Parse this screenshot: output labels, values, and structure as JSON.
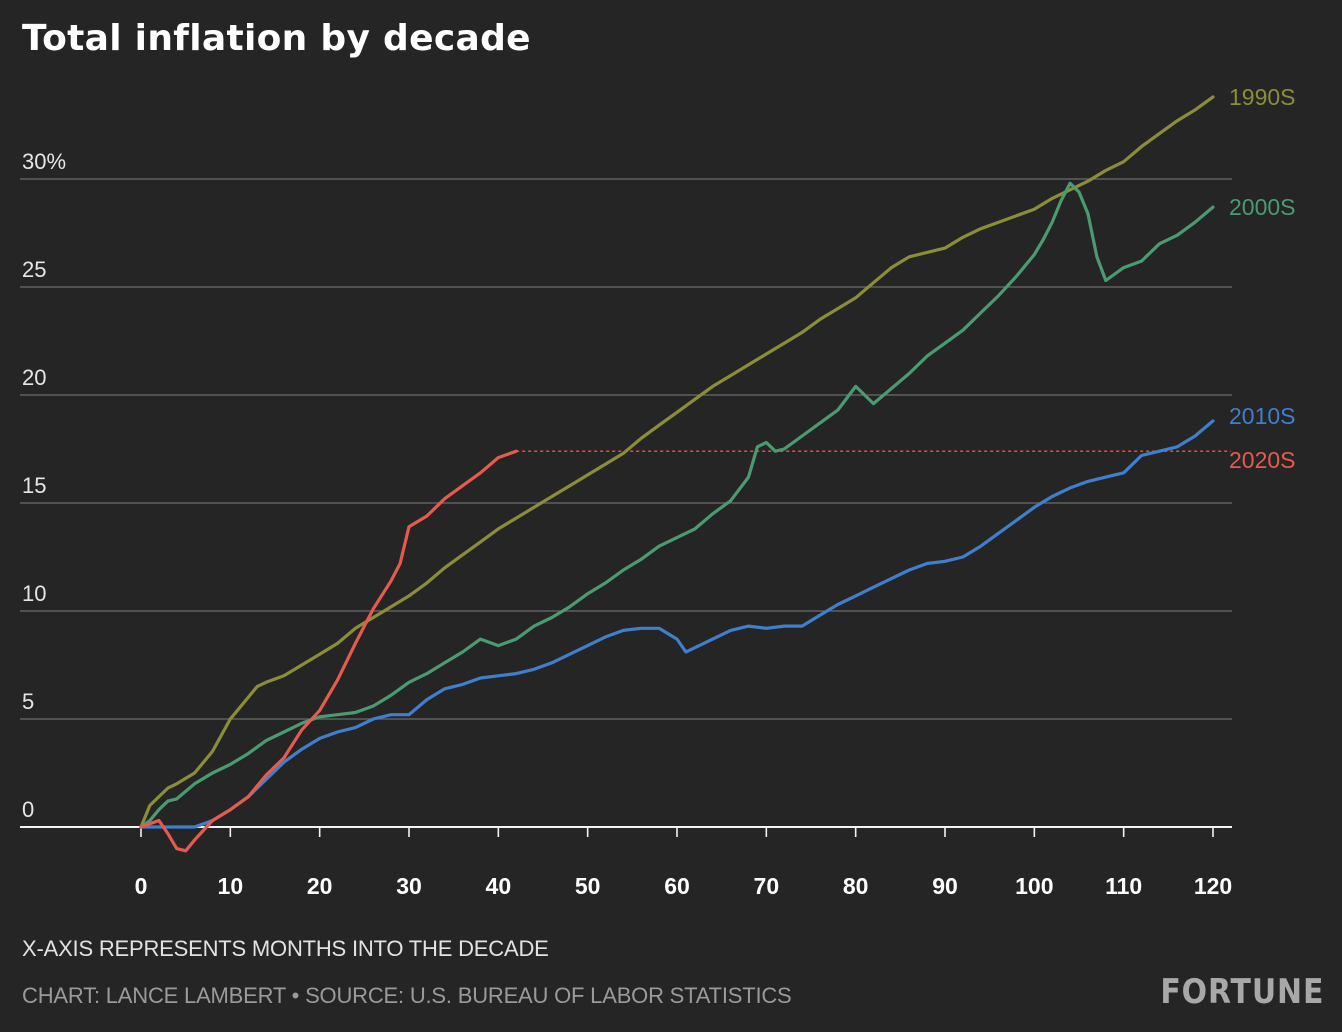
{
  "title": "Total inflation by decade",
  "note": "X-AXIS REPRESENTS MONTHS INTO THE DECADE",
  "credit": "CHART: LANCE LAMBERT • SOURCE: U.S. BUREAU OF LABOR STATISTICS",
  "brand": "FORTUNE",
  "chart_data": {
    "type": "line",
    "title": "Total inflation by decade",
    "xlabel": "X-AXIS REPRESENTS MONTHS INTO THE DECADE",
    "ylabel": "",
    "xlim": [
      0,
      120
    ],
    "ylim": [
      0,
      35
    ],
    "x_ticks": [
      0,
      10,
      20,
      30,
      40,
      50,
      60,
      70,
      80,
      90,
      100,
      110,
      120
    ],
    "y_ticks": [
      0,
      5,
      10,
      15,
      20,
      25,
      30
    ],
    "y_tick_labels": [
      "0",
      "5",
      "10",
      "15",
      "20",
      "25",
      "30%"
    ],
    "grid": true,
    "series": [
      {
        "name": "1990S",
        "color": "#8b8d3a",
        "x": [
          0,
          1,
          3,
          4,
          6,
          8,
          10,
          11,
          12,
          13,
          14,
          16,
          18,
          20,
          22,
          24,
          26,
          28,
          30,
          32,
          34,
          36,
          38,
          40,
          42,
          44,
          46,
          48,
          50,
          52,
          54,
          56,
          58,
          60,
          62,
          64,
          66,
          68,
          70,
          72,
          74,
          76,
          78,
          80,
          82,
          84,
          86,
          88,
          90,
          92,
          94,
          96,
          98,
          100,
          102,
          104,
          106,
          108,
          110,
          112,
          114,
          116,
          118,
          120
        ],
        "y": [
          0,
          1,
          1.8,
          2,
          2.5,
          3.5,
          5,
          5.5,
          6,
          6.5,
          6.7,
          7,
          7.5,
          8,
          8.5,
          9.2,
          9.7,
          10.2,
          10.7,
          11.3,
          12,
          12.6,
          13.2,
          13.8,
          14.3,
          14.8,
          15.3,
          15.8,
          16.3,
          16.8,
          17.3,
          18,
          18.6,
          19.2,
          19.8,
          20.4,
          20.9,
          21.4,
          21.9,
          22.4,
          22.9,
          23.5,
          24,
          24.5,
          25.2,
          25.9,
          26.4,
          26.6,
          26.8,
          27.3,
          27.7,
          28,
          28.3,
          28.6,
          29.1,
          29.5,
          29.9,
          30.4,
          30.8,
          31.5,
          32.1,
          32.7,
          33.2,
          33.8
        ]
      },
      {
        "name": "2000S",
        "color": "#4c9a72",
        "x": [
          0,
          1,
          2,
          3,
          4,
          6,
          8,
          10,
          12,
          14,
          16,
          18,
          20,
          22,
          24,
          26,
          28,
          30,
          32,
          34,
          36,
          38,
          40,
          42,
          44,
          46,
          48,
          50,
          52,
          54,
          56,
          58,
          60,
          62,
          64,
          66,
          68,
          69,
          70,
          71,
          72,
          74,
          76,
          78,
          80,
          82,
          84,
          86,
          88,
          90,
          92,
          94,
          96,
          98,
          100,
          101,
          102,
          103,
          104,
          105,
          106,
          107,
          108,
          110,
          112,
          114,
          116,
          118,
          120
        ],
        "y": [
          0,
          0.3,
          0.8,
          1.2,
          1.3,
          2,
          2.5,
          2.9,
          3.4,
          4,
          4.4,
          4.8,
          5.1,
          5.2,
          5.3,
          5.6,
          6.1,
          6.7,
          7.1,
          7.6,
          8.1,
          8.7,
          8.4,
          8.7,
          9.3,
          9.7,
          10.2,
          10.8,
          11.3,
          11.9,
          12.4,
          13,
          13.4,
          13.8,
          14.5,
          15.1,
          16.2,
          17.6,
          17.8,
          17.4,
          17.5,
          18.1,
          18.7,
          19.3,
          20.4,
          19.6,
          20.3,
          21,
          21.8,
          22.4,
          23,
          23.8,
          24.6,
          25.5,
          26.5,
          27.2,
          28,
          29,
          29.8,
          29.4,
          28.4,
          26.4,
          25.3,
          25.9,
          26.2,
          27,
          27.4,
          28,
          28.7
        ]
      },
      {
        "name": "2010S",
        "color": "#3f7fcd",
        "x": [
          0,
          2,
          4,
          6,
          8,
          10,
          12,
          14,
          16,
          18,
          20,
          22,
          24,
          26,
          28,
          30,
          32,
          34,
          36,
          38,
          40,
          42,
          44,
          46,
          48,
          50,
          52,
          54,
          56,
          58,
          60,
          61,
          62,
          64,
          66,
          68,
          70,
          72,
          74,
          76,
          78,
          80,
          82,
          84,
          86,
          88,
          90,
          92,
          94,
          96,
          98,
          100,
          102,
          104,
          106,
          108,
          110,
          112,
          114,
          116,
          118,
          120
        ],
        "y": [
          0,
          0,
          0,
          0,
          0.3,
          0.8,
          1.4,
          2.2,
          3,
          3.6,
          4.1,
          4.4,
          4.6,
          5,
          5.2,
          5.2,
          5.9,
          6.4,
          6.6,
          6.9,
          7,
          7.1,
          7.3,
          7.6,
          8,
          8.4,
          8.8,
          9.1,
          9.2,
          9.2,
          8.7,
          8.1,
          8.3,
          8.7,
          9.1,
          9.3,
          9.2,
          9.3,
          9.3,
          9.8,
          10.3,
          10.7,
          11.1,
          11.5,
          11.9,
          12.2,
          12.3,
          12.5,
          13,
          13.6,
          14.2,
          14.8,
          15.3,
          15.7,
          16,
          16.2,
          16.4,
          17.2,
          17.4,
          17.6,
          18.1,
          18.8
        ]
      },
      {
        "name": "2020S",
        "color": "#e65a4f",
        "x": [
          0,
          2,
          3,
          4,
          5,
          6,
          8,
          10,
          12,
          14,
          16,
          18,
          20,
          22,
          24,
          26,
          28,
          29,
          30,
          32,
          34,
          36,
          38,
          40,
          42
        ],
        "y": [
          0,
          0.3,
          -0.3,
          -1,
          -1.1,
          -0.6,
          0.3,
          0.8,
          1.4,
          2.4,
          3.2,
          4.5,
          5.4,
          6.8,
          8.5,
          10.1,
          11.4,
          12.2,
          13.9,
          14.4,
          15.2,
          15.8,
          16.4,
          17.1,
          17.4
        ]
      }
    ],
    "annotations": [
      {
        "type": "dashed_reference_line",
        "series": "2020S",
        "y": 17.4,
        "x_start": 42,
        "x_end": 122
      }
    ]
  }
}
